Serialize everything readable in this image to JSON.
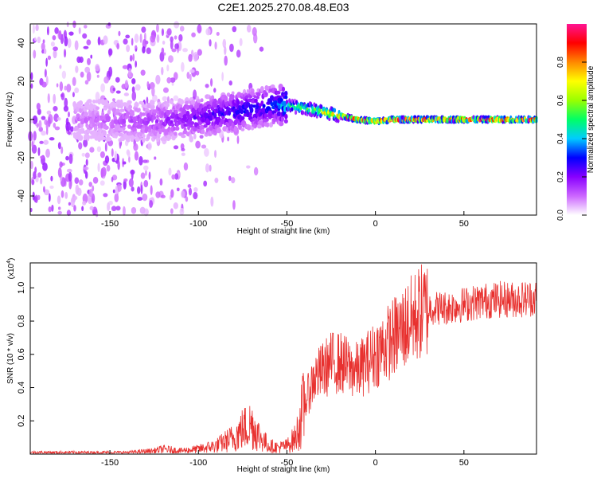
{
  "page_title": "C2E1.2025.270.08.48.E03",
  "chart_data": [
    {
      "type": "heatmap",
      "title": "C2E1.2025.270.08.48.E03",
      "xlabel": "Height of straight line (km)",
      "ylabel": "Frequency (Hz)",
      "xlim": [
        -195,
        91
      ],
      "ylim": [
        -50,
        50
      ],
      "x_ticks": [
        -150,
        -100,
        -50,
        0,
        50
      ],
      "y_ticks": [
        -40,
        -20,
        0,
        20,
        40
      ],
      "grid": false,
      "colorbar": {
        "label": "Normalized spectral amplitude",
        "range": [
          0,
          1
        ],
        "ticks": [
          0.0,
          0.2,
          0.4,
          0.6,
          0.8
        ],
        "colors": [
          "#ffffff",
          "#cc66ff",
          "#8800ff",
          "#0000ff",
          "#00ccff",
          "#00ff66",
          "#99ff00",
          "#ffff00",
          "#ff8800",
          "#ff0000",
          "#ff1493"
        ]
      },
      "ridge": {
        "description_points_x": [
          -165,
          -130,
          -110,
          -95,
          -80,
          -65,
          -55,
          -48,
          -40,
          -30,
          -20,
          -10,
          0,
          10,
          20,
          40,
          60,
          80,
          90
        ],
        "frequency_y": [
          0,
          -1,
          0,
          2,
          4,
          6,
          8,
          7,
          6,
          4,
          2,
          0,
          -1,
          0,
          0,
          0,
          0,
          0,
          0
        ],
        "peak_amplitude": [
          0.1,
          0.15,
          0.2,
          0.25,
          0.3,
          0.3,
          0.35,
          0.55,
          0.6,
          0.7,
          0.8,
          0.9,
          0.95,
          1.0,
          1.0,
          1.0,
          1.0,
          1.0,
          1.0
        ]
      }
    },
    {
      "type": "line",
      "xlabel": "Height of straight line (km)",
      "ylabel": "SNR (10 * v/v)",
      "yscale_label": "(x10",
      "yscale_exponent": "4",
      "xlim": [
        -195,
        91
      ],
      "ylim": [
        0,
        1.15
      ],
      "x_ticks": [
        -150,
        -100,
        -50,
        0,
        50
      ],
      "y_ticks": [
        0.2,
        0.4,
        0.6,
        0.8,
        1.0
      ],
      "grid": false,
      "color": "#e8312f",
      "series": [
        {
          "x": [
            -195,
            -180,
            -160,
            -140,
            -125,
            -120,
            -110,
            -100,
            -90,
            -80,
            -75,
            -70,
            -65,
            -60,
            -55,
            -50,
            -45,
            -40,
            -35,
            -30,
            -25,
            -20,
            -15,
            -10,
            -5,
            0,
            5,
            10,
            15,
            20,
            25,
            30,
            40,
            50,
            60,
            70,
            80,
            91
          ],
          "y": [
            0.01,
            0.01,
            0.01,
            0.01,
            0.02,
            0.03,
            0.02,
            0.03,
            0.05,
            0.1,
            0.15,
            0.18,
            0.1,
            0.05,
            0.04,
            0.05,
            0.1,
            0.3,
            0.45,
            0.5,
            0.55,
            0.55,
            0.52,
            0.5,
            0.55,
            0.6,
            0.65,
            0.7,
            0.75,
            0.8,
            0.85,
            0.88,
            0.88,
            0.9,
            0.92,
            0.93,
            0.93,
            0.94
          ]
        }
      ]
    }
  ]
}
